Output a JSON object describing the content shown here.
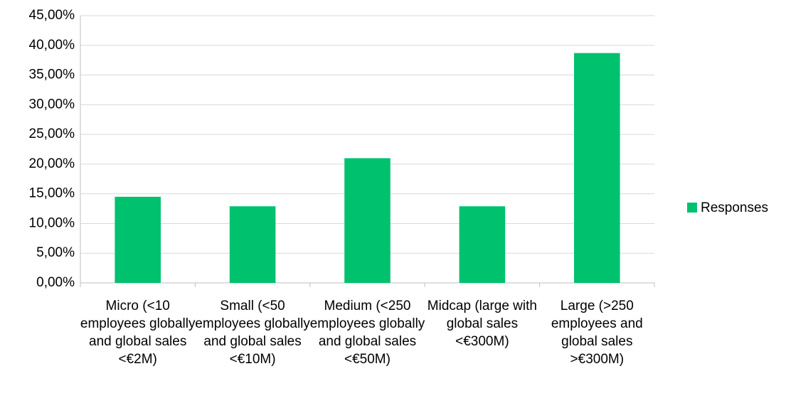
{
  "chart_data": {
    "type": "bar",
    "categories": [
      "Micro (<10 employees globally and global sales <€2M)",
      "Small (<50 employees globally and global sales <€10M)",
      "Medium (<250 employees globally and global sales <€50M)",
      "Midcap (large with global sales <€300M)",
      "Large (>250 employees and global sales >€300M)"
    ],
    "series": [
      {
        "name": "Responses",
        "color": "#00c16e",
        "values": [
          14.5,
          12.9,
          21.0,
          12.9,
          38.7
        ]
      }
    ],
    "ylim": [
      0,
      45
    ],
    "yticks": [
      {
        "value": 0,
        "label": "0,00%"
      },
      {
        "value": 5,
        "label": "5,00%"
      },
      {
        "value": 10,
        "label": "10,00%"
      },
      {
        "value": 15,
        "label": "15,00%"
      },
      {
        "value": 20,
        "label": "20,00%"
      },
      {
        "value": 25,
        "label": "25,00%"
      },
      {
        "value": 30,
        "label": "30,00%"
      },
      {
        "value": 35,
        "label": "35,00%"
      },
      {
        "value": 40,
        "label": "40,00%"
      },
      {
        "value": 45,
        "label": "45,00%"
      }
    ],
    "grid": true,
    "legend": "right"
  }
}
